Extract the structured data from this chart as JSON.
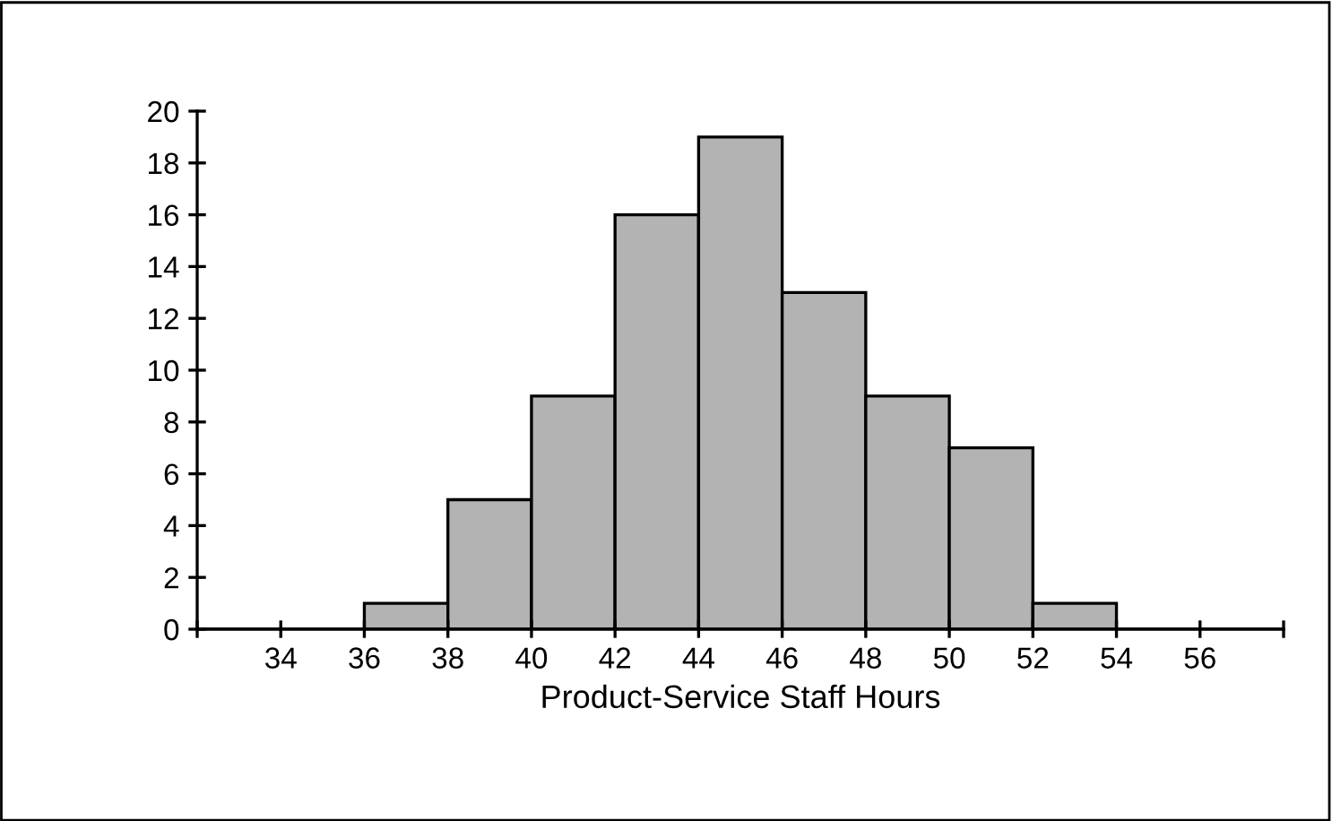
{
  "chart_data": {
    "type": "histogram",
    "xlabel": "Product-Service Staff Hours",
    "bins": [
      32,
      34,
      36,
      38,
      40,
      42,
      44,
      46,
      48,
      50,
      52,
      54,
      56,
      58
    ],
    "values": [
      0,
      0,
      1,
      5,
      9,
      16,
      19,
      13,
      9,
      7,
      1,
      0,
      0
    ],
    "color": "#b3b3b3",
    "xlim": [
      32,
      58
    ],
    "xticks": [
      {
        "value": 32,
        "label": null
      },
      34,
      36,
      38,
      40,
      42,
      44,
      46,
      48,
      50,
      52,
      54,
      56,
      {
        "value": 58,
        "label": null
      }
    ],
    "ylim": [
      0,
      20
    ],
    "yticks": [
      0,
      2,
      4,
      6,
      8,
      10,
      12,
      14,
      16,
      18,
      20
    ],
    "grid": false
  }
}
